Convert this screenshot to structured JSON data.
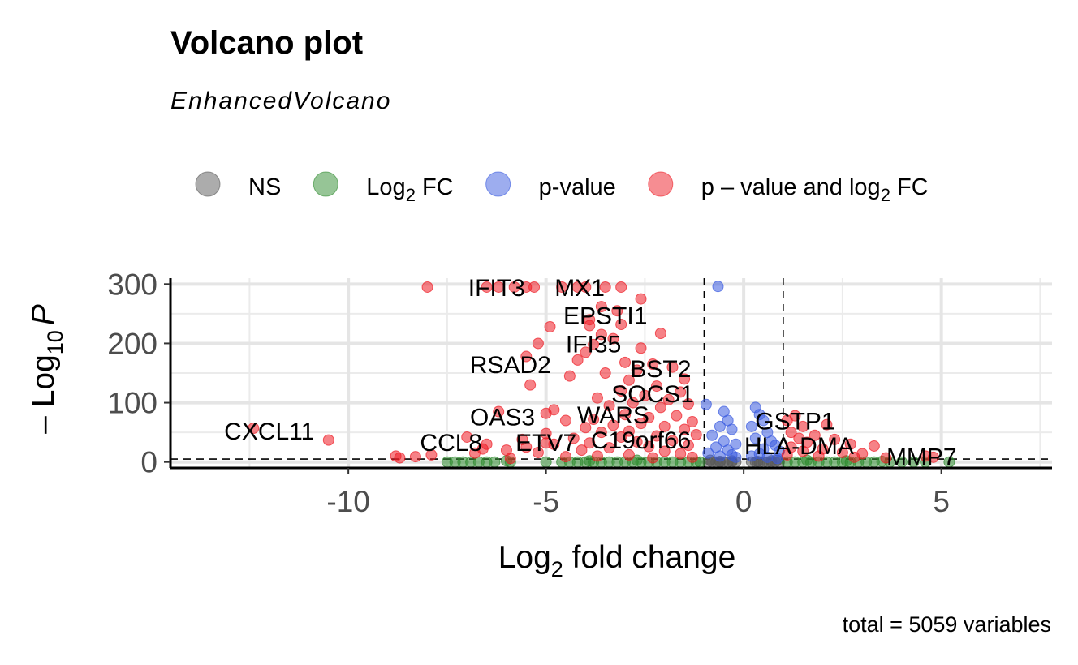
{
  "chart_data": {
    "type": "scatter",
    "title": "Volcano plot",
    "subtitle": "EnhancedVolcano",
    "caption": "total = 5059 variables",
    "xlabel_prefix": "Log",
    "xlabel_sub": "2",
    "xlabel_suffix": " fold change",
    "ylabel_prefix": "– Log",
    "ylabel_sub": "10",
    "ylabel_var": "P",
    "xlim": [
      -14.5,
      7.8
    ],
    "ylim": [
      -10,
      310
    ],
    "x_ticks": [
      -10,
      -5,
      0,
      5
    ],
    "x_tick_labels": [
      "-10",
      "-5",
      "0",
      "5"
    ],
    "y_ticks": [
      0,
      100,
      200,
      300
    ],
    "y_tick_labels": [
      "0",
      "100",
      "200",
      "300"
    ],
    "grid": true,
    "fc_cutoff": 1,
    "p_cutoff_log10": 5,
    "legend_position": "top",
    "legend": [
      {
        "key": "NS",
        "parts": [
          "NS"
        ],
        "color": "#595959"
      },
      {
        "key": "FC",
        "parts": [
          "Log",
          "2",
          " FC"
        ],
        "color": "#2e8b2e"
      },
      {
        "key": "P",
        "parts": [
          "p-value"
        ],
        "color": "#3b5be0"
      },
      {
        "key": "P_FC",
        "parts": [
          "p – value and log",
          "2",
          " FC"
        ],
        "color": "#ee1c25"
      }
    ],
    "colors": {
      "NS": "#595959",
      "FC": "#2e8b2e",
      "P": "#3b5be0",
      "P_FC": "#ee1c25"
    },
    "series": [
      {
        "key": "NS",
        "points": [
          [
            -0.9,
            0
          ],
          [
            -0.8,
            0
          ],
          [
            -0.7,
            0
          ],
          [
            -0.6,
            0
          ],
          [
            -0.5,
            0
          ],
          [
            -0.4,
            0
          ],
          [
            -0.3,
            0
          ],
          [
            -0.2,
            0
          ],
          [
            0.2,
            0
          ],
          [
            0.3,
            0
          ],
          [
            0.4,
            0
          ],
          [
            0.5,
            0
          ],
          [
            0.6,
            0
          ],
          [
            0.7,
            0
          ],
          [
            0.8,
            0
          ],
          [
            0.9,
            0
          ],
          [
            -0.6,
            1
          ],
          [
            -0.3,
            2
          ],
          [
            0.35,
            1
          ],
          [
            0.7,
            2
          ],
          [
            -0.85,
            3
          ],
          [
            0.85,
            3
          ]
        ]
      },
      {
        "key": "FC",
        "points": [
          [
            -7.5,
            0
          ],
          [
            -7.3,
            0
          ],
          [
            -7.1,
            0
          ],
          [
            -6.9,
            0
          ],
          [
            -6.7,
            0
          ],
          [
            -6.5,
            0
          ],
          [
            -6.3,
            0
          ],
          [
            -5.9,
            0
          ],
          [
            -5.0,
            0
          ],
          [
            -4.6,
            0
          ],
          [
            -4.4,
            0
          ],
          [
            -4.2,
            0
          ],
          [
            -4.0,
            0
          ],
          [
            -3.8,
            0
          ],
          [
            -3.6,
            0
          ],
          [
            -3.4,
            0
          ],
          [
            -3.2,
            0
          ],
          [
            -3.0,
            0
          ],
          [
            -2.8,
            0
          ],
          [
            -2.6,
            0
          ],
          [
            -2.4,
            0
          ],
          [
            -2.2,
            0
          ],
          [
            -2.0,
            0
          ],
          [
            -1.8,
            0
          ],
          [
            -1.6,
            0
          ],
          [
            -1.4,
            0
          ],
          [
            -1.2,
            0
          ],
          [
            -1.1,
            0
          ],
          [
            1.1,
            0
          ],
          [
            1.3,
            0
          ],
          [
            1.5,
            0
          ],
          [
            1.7,
            0
          ],
          [
            1.9,
            0
          ],
          [
            2.1,
            0
          ],
          [
            2.3,
            0
          ],
          [
            2.5,
            0
          ],
          [
            2.7,
            0
          ],
          [
            2.9,
            0
          ],
          [
            3.1,
            0
          ],
          [
            3.3,
            0
          ],
          [
            3.7,
            0
          ],
          [
            4.0,
            0
          ],
          [
            4.3,
            0
          ],
          [
            4.6,
            0
          ],
          [
            5.2,
            0
          ],
          [
            -6.0,
            2
          ],
          [
            -3.9,
            2
          ],
          [
            -2.7,
            3
          ],
          [
            1.6,
            3
          ],
          [
            2.6,
            2
          ],
          [
            3.5,
            1
          ]
        ]
      },
      {
        "key": "P",
        "points": [
          [
            -0.65,
            296
          ],
          [
            -0.95,
            97
          ],
          [
            -0.5,
            85
          ],
          [
            -0.4,
            70
          ],
          [
            -0.6,
            60
          ],
          [
            -0.3,
            55
          ],
          [
            -0.8,
            45
          ],
          [
            -0.5,
            35
          ],
          [
            -0.2,
            30
          ],
          [
            -0.7,
            25
          ],
          [
            -0.4,
            20
          ],
          [
            -0.9,
            15
          ],
          [
            -0.3,
            12
          ],
          [
            -0.6,
            10
          ],
          [
            -0.2,
            8
          ],
          [
            0.3,
            92
          ],
          [
            0.4,
            80
          ],
          [
            0.5,
            70
          ],
          [
            0.2,
            60
          ],
          [
            0.6,
            50
          ],
          [
            0.3,
            40
          ],
          [
            0.7,
            35
          ],
          [
            0.8,
            28
          ],
          [
            0.5,
            22
          ],
          [
            0.9,
            18
          ],
          [
            0.4,
            14
          ],
          [
            0.2,
            10
          ],
          [
            0.6,
            8
          ],
          [
            0.85,
            6
          ]
        ]
      },
      {
        "key": "P_FC",
        "points": [
          [
            -8.0,
            295
          ],
          [
            -6.5,
            295
          ],
          [
            -6.2,
            295
          ],
          [
            -5.8,
            295
          ],
          [
            -5.5,
            295
          ],
          [
            -5.3,
            295
          ],
          [
            -4.6,
            295
          ],
          [
            -4.2,
            295
          ],
          [
            -4.0,
            295
          ],
          [
            -3.5,
            295
          ],
          [
            -3.1,
            295
          ],
          [
            -2.6,
            275
          ],
          [
            -3.6,
            262
          ],
          [
            -3.2,
            255
          ],
          [
            -3.9,
            240
          ],
          [
            -3.1,
            232
          ],
          [
            -3.9,
            230
          ],
          [
            -4.9,
            228
          ],
          [
            -2.1,
            217
          ],
          [
            -3.6,
            215
          ],
          [
            -3.3,
            208
          ],
          [
            -5.2,
            200
          ],
          [
            -3.8,
            198
          ],
          [
            -2.6,
            192
          ],
          [
            -4.0,
            185
          ],
          [
            -5.5,
            178
          ],
          [
            -4.2,
            172
          ],
          [
            -3.0,
            168
          ],
          [
            -2.3,
            165
          ],
          [
            -1.8,
            160
          ],
          [
            -2.7,
            155
          ],
          [
            -3.5,
            150
          ],
          [
            -4.4,
            145
          ],
          [
            -1.5,
            140
          ],
          [
            -2.9,
            138
          ],
          [
            -5.4,
            130
          ],
          [
            -2.2,
            128
          ],
          [
            -3.1,
            120
          ],
          [
            -1.6,
            118
          ],
          [
            -2.5,
            112
          ],
          [
            -3.7,
            108
          ],
          [
            -1.9,
            105
          ],
          [
            -2.8,
            100
          ],
          [
            -1.4,
            98
          ],
          [
            -3.4,
            95
          ],
          [
            -2.1,
            92
          ],
          [
            -4.8,
            88
          ],
          [
            -6.2,
            85
          ],
          [
            -5.0,
            82
          ],
          [
            -3.0,
            80
          ],
          [
            -1.7,
            78
          ],
          [
            -2.4,
            75
          ],
          [
            -3.8,
            72
          ],
          [
            -4.5,
            70
          ],
          [
            -1.3,
            68
          ],
          [
            -2.6,
            65
          ],
          [
            -3.3,
            62
          ],
          [
            -2.0,
            60
          ],
          [
            -4.0,
            58
          ],
          [
            -1.5,
            55
          ],
          [
            -2.9,
            52
          ],
          [
            -3.6,
            50
          ],
          [
            -5.0,
            48
          ],
          [
            -1.2,
            46
          ],
          [
            -2.2,
            44
          ],
          [
            -3.1,
            42
          ],
          [
            -4.3,
            40
          ],
          [
            -5.6,
            38
          ],
          [
            -1.8,
            36
          ],
          [
            -2.7,
            34
          ],
          [
            -3.9,
            32
          ],
          [
            -4.8,
            30
          ],
          [
            -1.4,
            28
          ],
          [
            -2.4,
            26
          ],
          [
            -3.4,
            24
          ],
          [
            -6.6,
            22
          ],
          [
            -4.1,
            20
          ],
          [
            -2.0,
            18
          ],
          [
            -5.2,
            16
          ],
          [
            -1.6,
            14
          ],
          [
            -2.9,
            12
          ],
          [
            -3.7,
            10
          ],
          [
            -4.5,
            9
          ],
          [
            -1.3,
            8
          ],
          [
            -2.3,
            7
          ],
          [
            -5.9,
            6
          ],
          [
            -10.5,
            37
          ],
          [
            -12.4,
            57
          ],
          [
            -7.0,
            42
          ],
          [
            -6.5,
            30
          ],
          [
            -6.0,
            20
          ],
          [
            -5.5,
            25
          ],
          [
            -5.0,
            32
          ],
          [
            -8.8,
            10
          ],
          [
            -8.7,
            7
          ],
          [
            -8.3,
            9
          ],
          [
            -7.9,
            12
          ],
          [
            -6.8,
            15
          ],
          [
            1.1,
            70
          ],
          [
            1.3,
            78
          ],
          [
            2.1,
            63
          ],
          [
            1.5,
            60
          ],
          [
            1.2,
            50
          ],
          [
            1.8,
            45
          ],
          [
            1.4,
            40
          ],
          [
            2.3,
            38
          ],
          [
            1.6,
            33
          ],
          [
            2.7,
            30
          ],
          [
            3.3,
            27
          ],
          [
            1.2,
            25
          ],
          [
            2.0,
            22
          ],
          [
            1.5,
            18
          ],
          [
            2.5,
            16
          ],
          [
            3.0,
            14
          ],
          [
            1.1,
            12
          ],
          [
            1.9,
            10
          ],
          [
            2.8,
            8
          ],
          [
            3.6,
            7
          ],
          [
            4.6,
            10
          ],
          [
            4.8,
            8
          ]
        ]
      }
    ],
    "labels": [
      {
        "text": "IFIT3",
        "x": -6.25,
        "y": 295
      },
      {
        "text": "MX1",
        "x": -4.15,
        "y": 295
      },
      {
        "text": "EPSTI1",
        "x": -3.5,
        "y": 248
      },
      {
        "text": "IFI35",
        "x": -3.8,
        "y": 200
      },
      {
        "text": "RSAD2",
        "x": -5.9,
        "y": 165
      },
      {
        "text": "BST2",
        "x": -2.1,
        "y": 158
      },
      {
        "text": "SOCS1",
        "x": -2.3,
        "y": 116
      },
      {
        "text": "OAS3",
        "x": -6.1,
        "y": 77
      },
      {
        "text": "WARS",
        "x": -3.3,
        "y": 80
      },
      {
        "text": "GSTP1",
        "x": 1.3,
        "y": 70
      },
      {
        "text": "CXCL11",
        "x": -12.0,
        "y": 53
      },
      {
        "text": "CCL8",
        "x": -7.4,
        "y": 34
      },
      {
        "text": "ETV7",
        "x": -5.0,
        "y": 34
      },
      {
        "text": "C19orf66",
        "x": -2.6,
        "y": 38
      },
      {
        "text": "HLA-DMA",
        "x": 1.4,
        "y": 28
      },
      {
        "text": "MMP7",
        "x": 4.5,
        "y": 10
      }
    ]
  }
}
